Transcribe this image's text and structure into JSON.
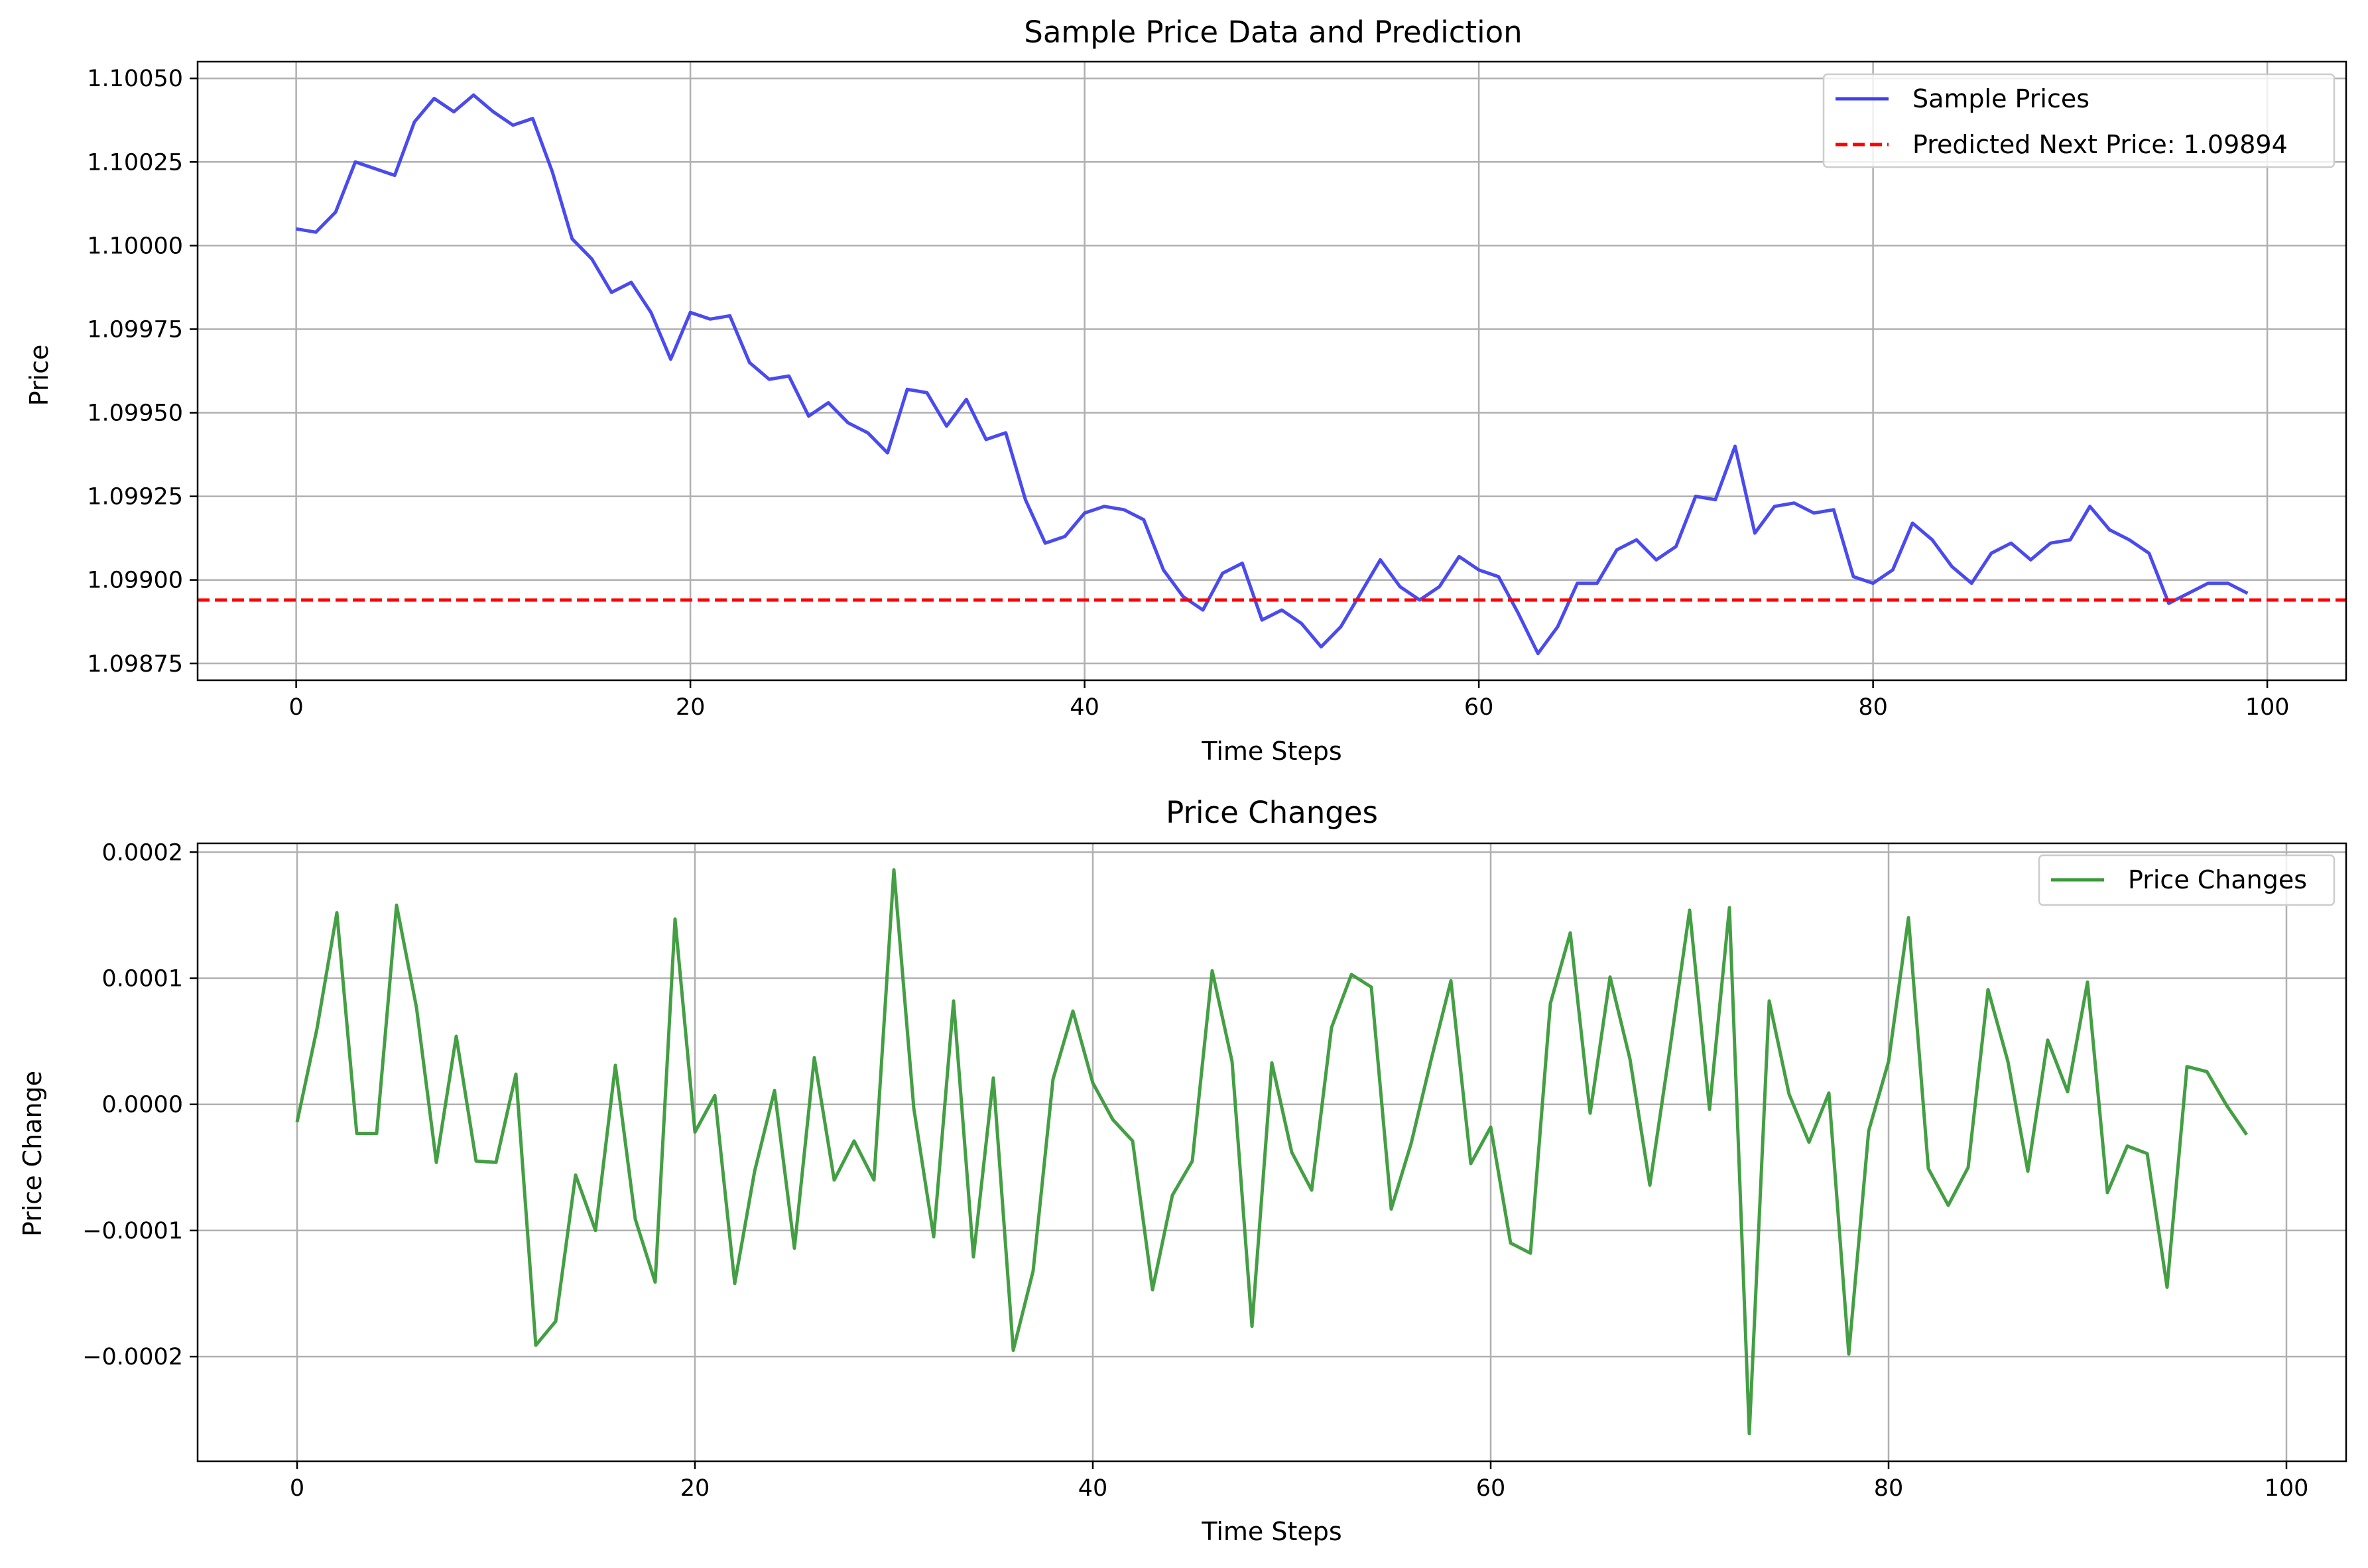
{
  "chart_data": [
    {
      "type": "line",
      "title": "Sample Price Data and Prediction",
      "xlabel": "Time Steps",
      "ylabel": "Price",
      "xlim": [
        -5,
        104
      ],
      "ylim": [
        1.0987,
        1.10055
      ],
      "xticks": [
        0,
        20,
        40,
        60,
        80,
        100
      ],
      "xtick_labels": [
        "0",
        "20",
        "40",
        "60",
        "80",
        "100"
      ],
      "yticks": [
        1.09875,
        1.099,
        1.09925,
        1.0995,
        1.09975,
        1.1,
        1.10025,
        1.1005
      ],
      "ytick_labels": [
        "1.09875",
        "1.09900",
        "1.09925",
        "1.09950",
        "1.09975",
        "1.10000",
        "1.10025",
        "1.10050"
      ],
      "grid": true,
      "legend_position": "top-right",
      "series": [
        {
          "name": "Sample Prices",
          "color": "#4040f0",
          "style": "solid",
          "x": [
            0,
            1,
            2,
            3,
            4,
            5,
            6,
            7,
            8,
            9,
            10,
            11,
            12,
            13,
            14,
            15,
            16,
            17,
            18,
            19,
            20,
            21,
            22,
            23,
            24,
            25,
            26,
            27,
            28,
            29,
            30,
            31,
            32,
            33,
            34,
            35,
            36,
            37,
            38,
            39,
            40,
            41,
            42,
            43,
            44,
            45,
            46,
            47,
            48,
            49,
            50,
            51,
            52,
            53,
            54,
            55,
            56,
            57,
            58,
            59,
            60,
            61,
            62,
            63,
            64,
            65,
            66,
            67,
            68,
            69,
            70,
            71,
            72,
            73,
            74,
            75,
            76,
            77,
            78,
            79,
            80,
            81,
            82,
            83,
            84,
            85,
            86,
            87,
            88,
            89,
            90,
            91,
            92,
            93,
            94,
            95,
            96,
            97,
            98,
            99
          ],
          "values": [
            1.10005,
            1.10004,
            1.1001,
            1.10025,
            1.10023,
            1.10021,
            1.10037,
            1.10044,
            1.1004,
            1.10045,
            1.1004,
            1.10036,
            1.10038,
            1.10022,
            1.10002,
            1.09996,
            1.09986,
            1.09989,
            1.0998,
            1.09966,
            1.0998,
            1.09978,
            1.09979,
            1.09965,
            1.0996,
            1.09961,
            1.09949,
            1.09953,
            1.09947,
            1.09944,
            1.09938,
            1.09957,
            1.09956,
            1.09946,
            1.09954,
            1.09942,
            1.09944,
            1.09924,
            1.09911,
            1.09913,
            1.0992,
            1.09922,
            1.09921,
            1.09918,
            1.09903,
            1.09895,
            1.09891,
            1.09902,
            1.09905,
            1.09888,
            1.09891,
            1.09887,
            1.0988,
            1.09886,
            1.09896,
            1.09906,
            1.09898,
            1.09894,
            1.09898,
            1.09907,
            1.09903,
            1.09901,
            1.0989,
            1.09878,
            1.09886,
            1.09899,
            1.09899,
            1.09909,
            1.09912,
            1.09906,
            1.0991,
            1.09925,
            1.09924,
            1.0994,
            1.09914,
            1.09922,
            1.09923,
            1.0992,
            1.09921,
            1.09901,
            1.09899,
            1.09903,
            1.09917,
            1.09912,
            1.09904,
            1.09899,
            1.09908,
            1.09911,
            1.09906,
            1.09911,
            1.09912,
            1.09922,
            1.09915,
            1.09912,
            1.09908,
            1.09893,
            1.09896,
            1.09899,
            1.09899,
            1.09896
          ]
        },
        {
          "name": "Predicted Next Price: 1.09894",
          "color": "#ff0000",
          "style": "dashed",
          "hline": 1.09894
        }
      ]
    },
    {
      "type": "line",
      "title": "Price Changes",
      "xlabel": "Time Steps",
      "ylabel": "Price Change",
      "xlim": [
        -5,
        103
      ],
      "ylim": [
        -0.000283,
        0.000207
      ],
      "xticks": [
        0,
        20,
        40,
        60,
        80,
        100
      ],
      "xtick_labels": [
        "0",
        "20",
        "40",
        "60",
        "80",
        "100"
      ],
      "yticks": [
        -0.0002,
        -0.0001,
        0.0,
        0.0001,
        0.0002
      ],
      "ytick_labels": [
        "−0.0002",
        "−0.0001",
        "0.0000",
        "0.0001",
        "0.0002"
      ],
      "grid": true,
      "legend_position": "top-right",
      "series": [
        {
          "name": "Price Changes",
          "color": "#3a9a3a",
          "style": "solid",
          "x": [
            0,
            1,
            2,
            3,
            4,
            5,
            6,
            7,
            8,
            9,
            10,
            11,
            12,
            13,
            14,
            15,
            16,
            17,
            18,
            19,
            20,
            21,
            22,
            23,
            24,
            25,
            26,
            27,
            28,
            29,
            30,
            31,
            32,
            33,
            34,
            35,
            36,
            37,
            38,
            39,
            40,
            41,
            42,
            43,
            44,
            45,
            46,
            47,
            48,
            49,
            50,
            51,
            52,
            53,
            54,
            55,
            56,
            57,
            58,
            59,
            60,
            61,
            62,
            63,
            64,
            65,
            66,
            67,
            68,
            69,
            70,
            71,
            72,
            73,
            74,
            75,
            76,
            77,
            78,
            79,
            80,
            81,
            82,
            83,
            84,
            85,
            86,
            87,
            88,
            89,
            90,
            91,
            92,
            93,
            94,
            95,
            96,
            97,
            98
          ],
          "values": [
            -1.4e-05,
            6e-05,
            0.000152,
            -2.3e-05,
            -2.3e-05,
            0.000158,
            7.7e-05,
            -4.6e-05,
            5.4e-05,
            -4.5e-05,
            -4.6e-05,
            2.4e-05,
            -0.000191,
            -0.000172,
            -5.6e-05,
            -0.0001,
            3.1e-05,
            -9.1e-05,
            -0.000141,
            0.000147,
            -2.2e-05,
            7e-06,
            -0.000142,
            -5.3e-05,
            1.1e-05,
            -0.000114,
            3.7e-05,
            -6e-05,
            -2.9e-05,
            -6e-05,
            0.000186,
            -3e-06,
            -0.000105,
            8.2e-05,
            -0.000121,
            2.1e-05,
            -0.000195,
            -0.000132,
            2e-05,
            7.4e-05,
            1.7e-05,
            -1.2e-05,
            -2.9e-05,
            -0.000147,
            -7.2e-05,
            -4.5e-05,
            0.000106,
            3.4e-05,
            -0.000176,
            3.3e-05,
            -3.8e-05,
            -6.8e-05,
            6.1e-05,
            0.000103,
            9.3e-05,
            -8.3e-05,
            -3.1e-05,
            3.5e-05,
            9.8e-05,
            -4.7e-05,
            -1.8e-05,
            -0.00011,
            -0.000118,
            8e-05,
            0.000136,
            -7e-06,
            0.000101,
            3.6e-05,
            -6.4e-05,
            4.3e-05,
            0.000154,
            -4e-06,
            0.000156,
            -0.000261,
            8.2e-05,
            8e-06,
            -3e-05,
            9e-06,
            -0.000198,
            -2.1e-05,
            3.4e-05,
            0.000148,
            -5.1e-05,
            -8e-05,
            -5e-05,
            9.1e-05,
            3.4e-05,
            -5.3e-05,
            5.1e-05,
            1e-05,
            9.7e-05,
            -7e-05,
            -3.3e-05,
            -3.9e-05,
            -0.000145,
            3e-05,
            2.6e-05,
            -1e-06,
            -2.4e-05
          ]
        }
      ]
    }
  ]
}
